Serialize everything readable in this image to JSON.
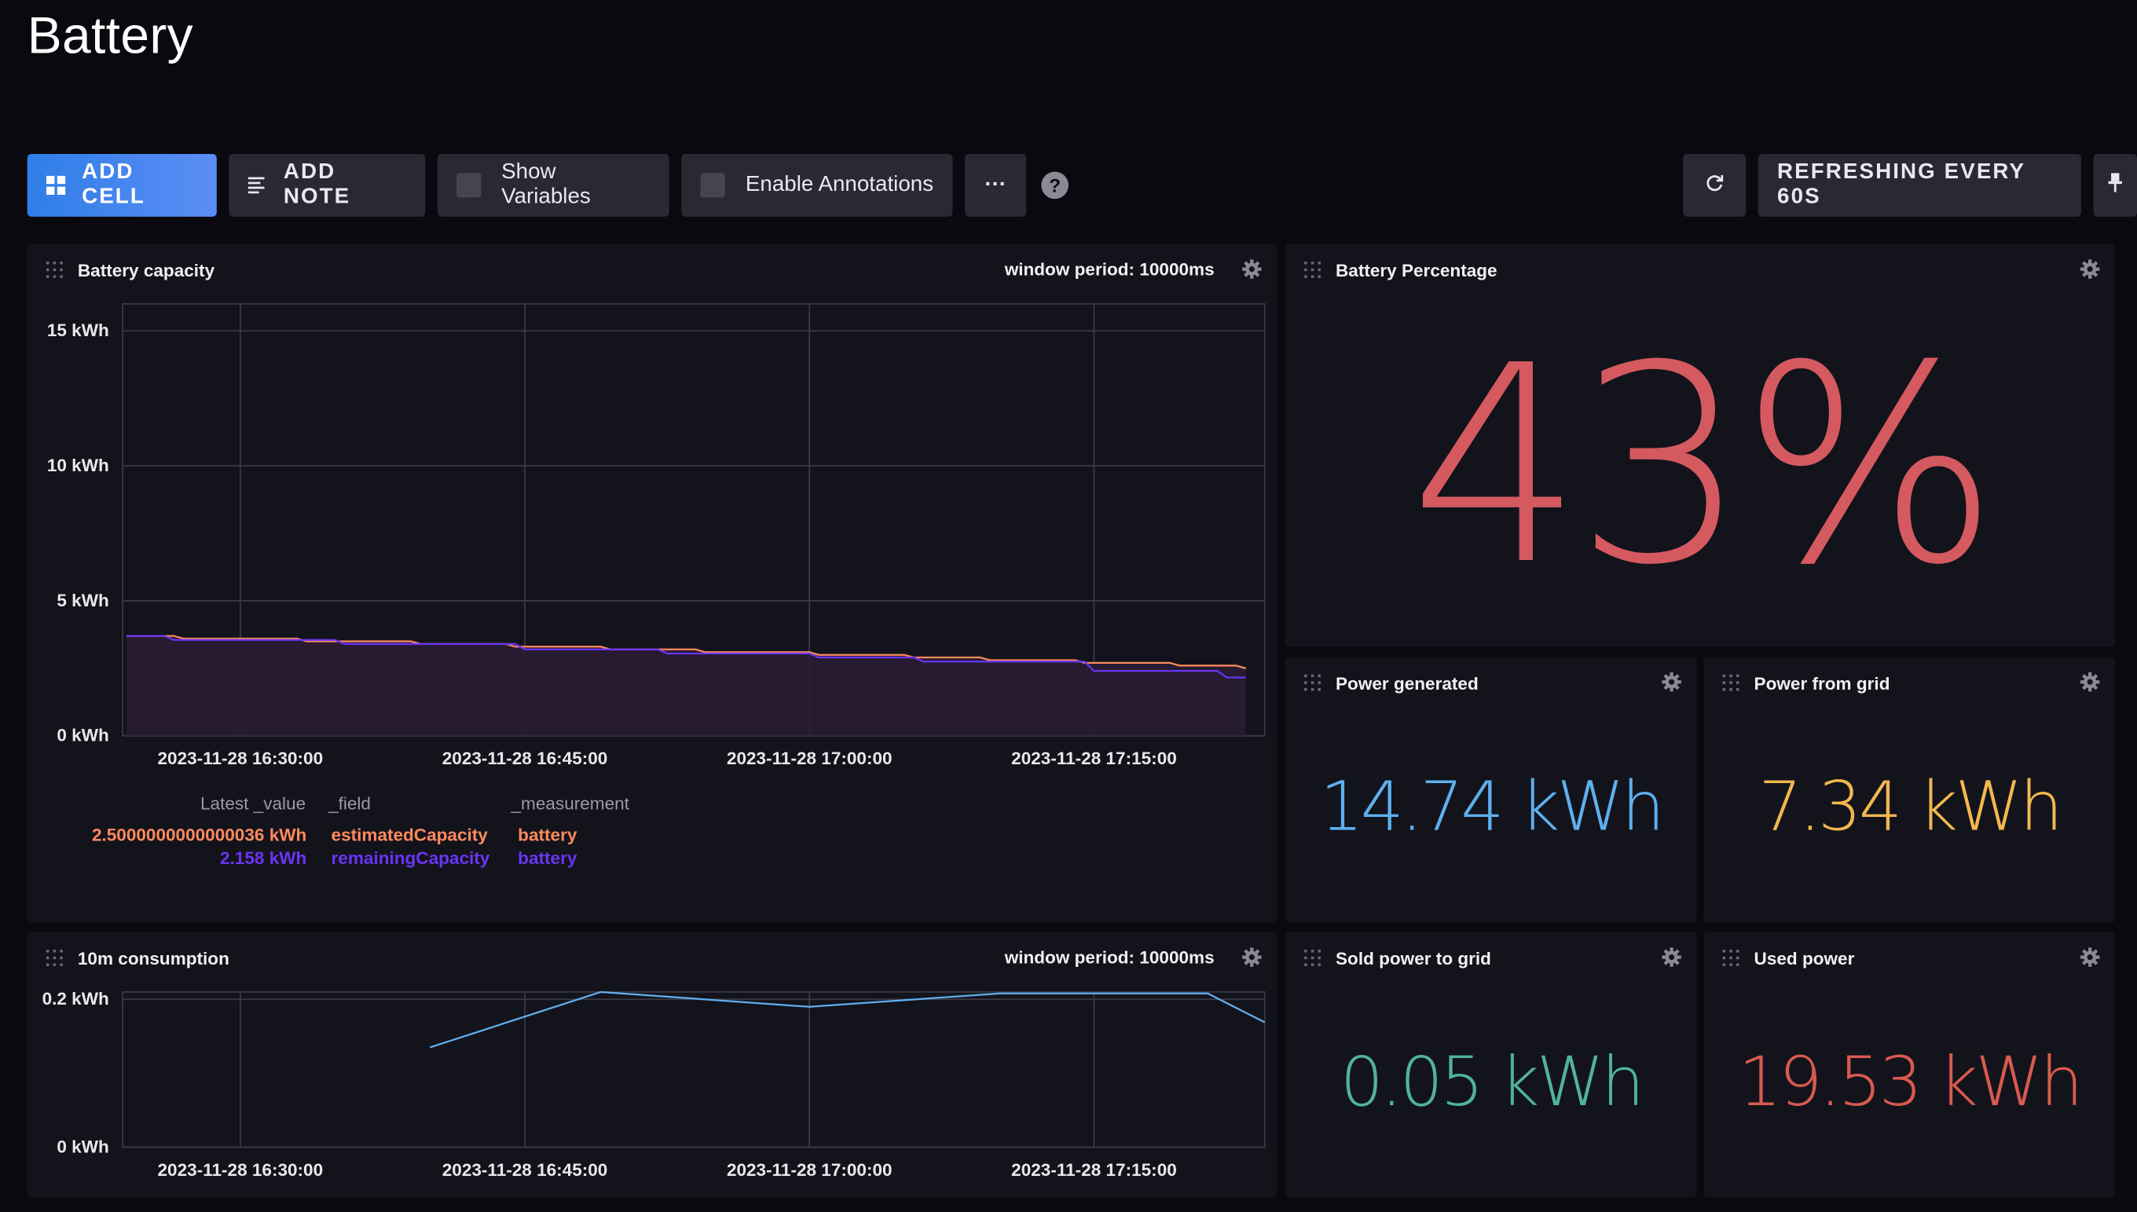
{
  "page": {
    "title": "Battery"
  },
  "toolbar": {
    "add_cell": "ADD CELL",
    "add_note": "ADD NOTE",
    "show_variables": "Show Variables",
    "enable_annotations": "Enable Annotations",
    "more": "···",
    "help": "?",
    "refresh_interval": "REFRESHING EVERY 60S",
    "accent_color": "#3a84ee"
  },
  "cells": {
    "battery_capacity": {
      "title": "Battery capacity",
      "window_period": "window period: 10000ms",
      "legend": {
        "headers": [
          "Latest _value",
          "_field",
          "_measurement"
        ],
        "rows": [
          {
            "value": "2.5000000000000036 kWh",
            "field": "estimatedCapacity",
            "measurement": "battery",
            "color": "#ff8a5c"
          },
          {
            "value": "2.158 kWh",
            "field": "remainingCapacity",
            "measurement": "battery",
            "color": "#6a34f5"
          }
        ]
      }
    },
    "battery_percentage": {
      "title": "Battery Percentage",
      "value": "43%",
      "color": "#d45a5f"
    },
    "power_generated": {
      "title": "Power generated",
      "value": "14.74 kWh",
      "color": "#5eb0ef"
    },
    "power_from_grid": {
      "title": "Power from grid",
      "value": "7.34 kWh",
      "color": "#f2b84e"
    },
    "consumption_10m": {
      "title": "10m consumption",
      "window_period": "window period: 10000ms"
    },
    "sold_power": {
      "title": "Sold power to grid",
      "value": "0.05 kWh",
      "color": "#4fb49a"
    },
    "used_power": {
      "title": "Used power",
      "value": "19.53 kWh",
      "color": "#d95a4e"
    }
  },
  "chart_data": [
    {
      "type": "area",
      "yticks": [
        "0 kWh",
        "5 kWh",
        "10 kWh",
        "15 kWh"
      ],
      "ylim": [
        0,
        16
      ],
      "xticks": [
        "2023-11-28 16:30:00",
        "2023-11-28 16:45:00",
        "2023-11-28 17:00:00",
        "2023-11-28 17:15:00"
      ],
      "xtick_minutes": [
        30,
        45,
        60,
        75
      ],
      "xlim_minutes": [
        23.8,
        84
      ],
      "grid": true,
      "series": [
        {
          "name": "estimatedCapacity",
          "color": "#ff8a5c",
          "points": [
            [
              24,
              3.7
            ],
            [
              26.5,
              3.7
            ],
            [
              27,
              3.6
            ],
            [
              33,
              3.6
            ],
            [
              33.5,
              3.5
            ],
            [
              39,
              3.5
            ],
            [
              39.5,
              3.4
            ],
            [
              44,
              3.4
            ],
            [
              44.5,
              3.3
            ],
            [
              49,
              3.3
            ],
            [
              49.5,
              3.2
            ],
            [
              54,
              3.2
            ],
            [
              54.5,
              3.1
            ],
            [
              60,
              3.1
            ],
            [
              60.5,
              3.0
            ],
            [
              65,
              3.0
            ],
            [
              65.5,
              2.9
            ],
            [
              69,
              2.9
            ],
            [
              69.5,
              2.8
            ],
            [
              74,
              2.8
            ],
            [
              74.5,
              2.7
            ],
            [
              79,
              2.7
            ],
            [
              79.5,
              2.6
            ],
            [
              82.5,
              2.6
            ],
            [
              83,
              2.5
            ]
          ]
        },
        {
          "name": "remainingCapacity",
          "color": "#6a34f5",
          "points": [
            [
              24,
              3.7
            ],
            [
              26,
              3.7
            ],
            [
              26.5,
              3.55
            ],
            [
              35,
              3.55
            ],
            [
              35.5,
              3.4
            ],
            [
              44.5,
              3.4
            ],
            [
              45,
              3.2
            ],
            [
              52,
              3.2
            ],
            [
              52.5,
              3.05
            ],
            [
              60,
              3.05
            ],
            [
              60.5,
              2.9
            ],
            [
              65.5,
              2.9
            ],
            [
              66,
              2.75
            ],
            [
              74.5,
              2.75
            ],
            [
              75,
              2.4
            ],
            [
              81.5,
              2.4
            ],
            [
              82,
              2.16
            ],
            [
              83,
              2.16
            ]
          ]
        }
      ]
    },
    {
      "type": "line",
      "yticks": [
        "0 kWh",
        "0.2 kWh"
      ],
      "ylim": [
        0,
        0.21
      ],
      "xticks": [
        "2023-11-28 16:30:00",
        "2023-11-28 16:45:00",
        "2023-11-28 17:00:00",
        "2023-11-28 17:15:00"
      ],
      "xtick_minutes": [
        30,
        45,
        60,
        75
      ],
      "xlim_minutes": [
        23.8,
        84
      ],
      "grid": true,
      "series": [
        {
          "color": "#5eb0ef",
          "points": [
            [
              40,
              0.135
            ],
            [
              49,
              0.21
            ],
            [
              60,
              0.19
            ],
            [
              70,
              0.208
            ],
            [
              79,
              0.208
            ],
            [
              81,
              0.208
            ],
            [
              84,
              0.169
            ]
          ]
        }
      ]
    }
  ]
}
